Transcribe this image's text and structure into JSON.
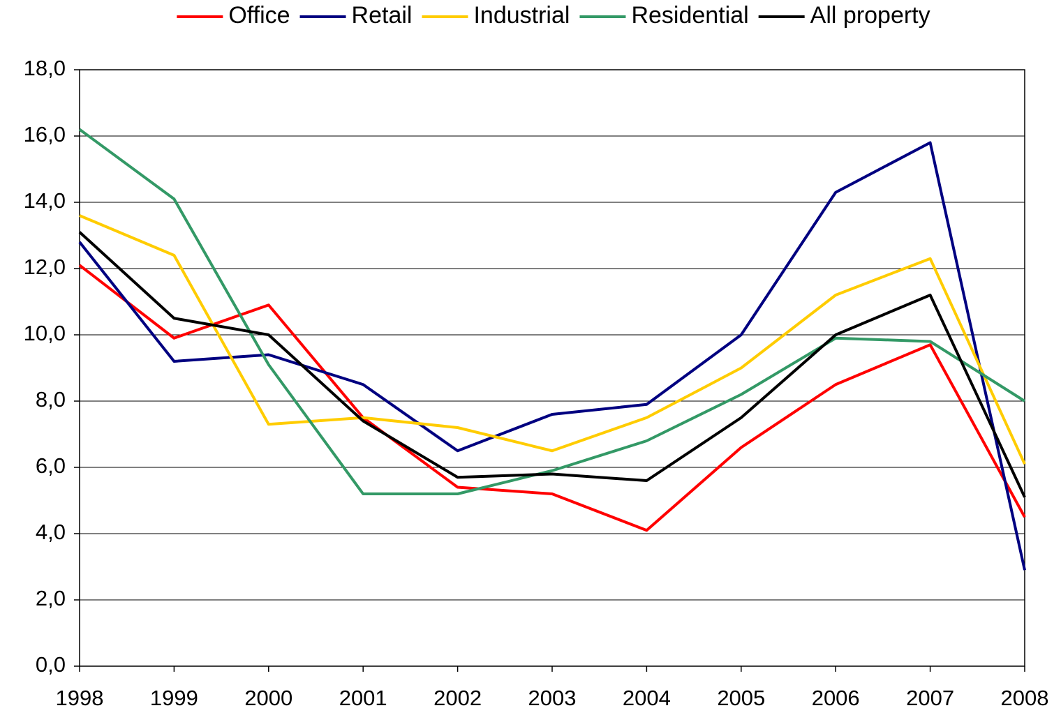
{
  "chart_data": {
    "type": "line",
    "categories": [
      "1998",
      "1999",
      "2000",
      "2001",
      "2002",
      "2003",
      "2004",
      "2005",
      "2006",
      "2007",
      "2008"
    ],
    "series": [
      {
        "name": "Office",
        "color": "#ff0000",
        "values": [
          12.1,
          9.9,
          10.9,
          7.5,
          5.4,
          5.2,
          4.1,
          6.6,
          8.5,
          9.7,
          4.5
        ]
      },
      {
        "name": "Retail",
        "color": "#000080",
        "values": [
          12.8,
          9.2,
          9.4,
          8.5,
          6.5,
          7.6,
          7.9,
          10.0,
          14.3,
          15.8,
          2.9
        ]
      },
      {
        "name": "Industrial",
        "color": "#ffcc00",
        "values": [
          13.6,
          12.4,
          7.3,
          7.5,
          7.2,
          6.5,
          7.5,
          9.0,
          11.2,
          12.3,
          6.1
        ]
      },
      {
        "name": "Residential",
        "color": "#339966",
        "values": [
          16.2,
          14.1,
          9.1,
          5.2,
          5.2,
          5.9,
          6.8,
          8.2,
          9.9,
          9.8,
          8.0
        ]
      },
      {
        "name": "All property",
        "color": "#000000",
        "values": [
          13.1,
          10.5,
          10.0,
          7.4,
          5.7,
          5.8,
          5.6,
          7.5,
          10.0,
          11.2,
          5.1
        ]
      }
    ],
    "ylim": [
      0,
      18
    ],
    "yticks": [
      {
        "value": 0,
        "label": "0,0"
      },
      {
        "value": 2,
        "label": "2,0"
      },
      {
        "value": 4,
        "label": "4,0"
      },
      {
        "value": 6,
        "label": "6,0"
      },
      {
        "value": 8,
        "label": "8,0"
      },
      {
        "value": 10,
        "label": "10,0"
      },
      {
        "value": 12,
        "label": "12,0"
      },
      {
        "value": 14,
        "label": "14,0"
      },
      {
        "value": 16,
        "label": "16,0"
      },
      {
        "value": 18,
        "label": "18,0"
      }
    ],
    "grid": true,
    "legend": "top"
  }
}
